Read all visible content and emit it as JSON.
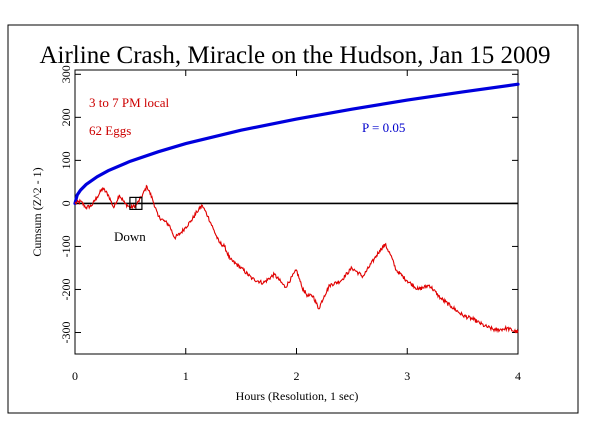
{
  "chart_data": {
    "type": "line",
    "title": "Airline Crash, Miracle on the Hudson, Jan 15 2009",
    "xlabel": "Hours (Resolution, 1 sec)",
    "ylabel": "Cumsum (Z^2 - 1)",
    "xlim": [
      0,
      4
    ],
    "ylim": [
      -350,
      310
    ],
    "x_ticks": [
      "0",
      "1",
      "2",
      "3",
      "4"
    ],
    "x_tick_values": [
      0,
      1,
      2,
      3,
      4
    ],
    "y_ticks": [
      "-300",
      "-200",
      "-100",
      "0",
      "100",
      "200",
      "300"
    ],
    "y_tick_values": [
      -300,
      -200,
      -100,
      0,
      100,
      200,
      300
    ],
    "annotations": {
      "time_window": "3 to 7 PM local",
      "eggs": "62 Eggs",
      "probability": "P = 0.05",
      "event_label": "Down"
    },
    "event_marker": {
      "x": 0.55,
      "y": 0
    },
    "colors": {
      "data_line": "#e00000",
      "envelope_line": "#0000dd",
      "zero_line": "#000000",
      "annotation_red": "#cc0000",
      "annotation_blue": "#0000cc"
    },
    "series": [
      {
        "role": "cumulative-deviation",
        "x": [
          0,
          0.05,
          0.1,
          0.15,
          0.2,
          0.25,
          0.3,
          0.35,
          0.4,
          0.45,
          0.5,
          0.55,
          0.6,
          0.65,
          0.7,
          0.75,
          0.8,
          0.85,
          0.9,
          0.95,
          1.0,
          1.05,
          1.1,
          1.15,
          1.2,
          1.25,
          1.3,
          1.35,
          1.4,
          1.5,
          1.6,
          1.7,
          1.8,
          1.9,
          2.0,
          2.05,
          2.1,
          2.15,
          2.2,
          2.25,
          2.3,
          2.4,
          2.5,
          2.6,
          2.7,
          2.75,
          2.8,
          2.85,
          2.9,
          3.0,
          3.1,
          3.2,
          3.3,
          3.4,
          3.5,
          3.6,
          3.7,
          3.8,
          3.9,
          4.0
        ],
        "y": [
          0,
          5,
          -10,
          -5,
          15,
          35,
          20,
          -10,
          20,
          0,
          -10,
          -5,
          15,
          40,
          10,
          -30,
          -40,
          -50,
          -80,
          -70,
          -55,
          -40,
          -20,
          -5,
          -30,
          -60,
          -90,
          -100,
          -130,
          -150,
          -175,
          -185,
          -165,
          -195,
          -155,
          -195,
          -215,
          -215,
          -245,
          -215,
          -190,
          -180,
          -150,
          -170,
          -130,
          -110,
          -95,
          -120,
          -155,
          -180,
          -200,
          -190,
          -220,
          -240,
          -260,
          -270,
          -285,
          -295,
          -290,
          -300
        ]
      },
      {
        "role": "significance-envelope",
        "x": [
          0,
          0.02,
          0.05,
          0.1,
          0.2,
          0.3,
          0.5,
          0.75,
          1.0,
          1.5,
          2.0,
          2.5,
          3.0,
          3.5,
          4.0
        ],
        "y": [
          0,
          19.6,
          31,
          44,
          62,
          76,
          98,
          120,
          139,
          170,
          196,
          219,
          240,
          259,
          277
        ]
      }
    ]
  }
}
